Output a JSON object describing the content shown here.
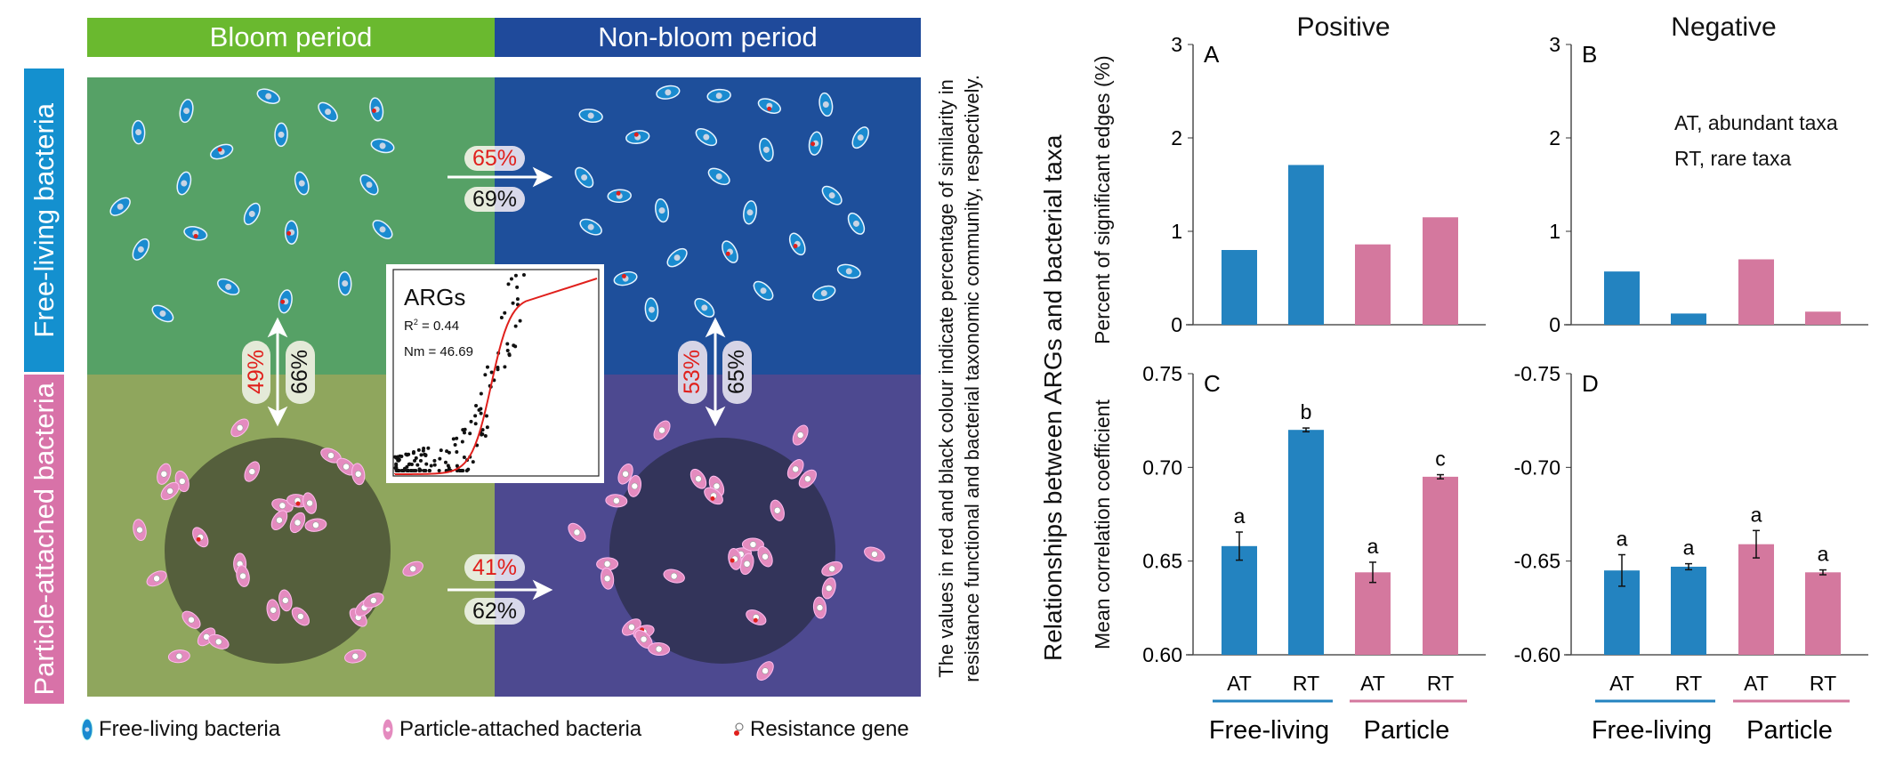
{
  "diagram": {
    "periods": {
      "bloom": "Bloom period",
      "non_bloom": "Non-bloom period"
    },
    "rows": {
      "free_living": "Free-living bacteria",
      "particle_attached": "Particle-attached bacteria"
    },
    "similarity": {
      "free_living_bloom_to_nonbloom": {
        "functional": "65%",
        "taxonomic": "69%"
      },
      "particle_bloom_to_nonbloom": {
        "functional": "41%",
        "taxonomic": "62%"
      },
      "bloom_free_vs_particle": {
        "functional": "49%",
        "taxonomic": "66%"
      },
      "nonbloom_free_vs_particle": {
        "functional": "53%",
        "taxonomic": "65%"
      }
    },
    "inset": {
      "title": "ARGs",
      "r2_label": "R",
      "r2_sup": "2",
      "r2_value": " = 0.44",
      "nm": "Nm = 46.69"
    },
    "legend": {
      "free_living": "Free-living bacteria",
      "particle_attached": "Particle-attached bacteria",
      "resistance_gene": "Resistance gene"
    },
    "caption_lines": [
      "The values in red and black colour indicate percentage of similarity in",
      "resistance functional and bacterial taxonomic community, respectively."
    ],
    "colors": {
      "bloom": "#6ab92f",
      "non_bloom": "#1f4a9b",
      "free_quad_bloom": "#56a166",
      "free_quad_nonbloom": "#1e4f9b",
      "particle_quad_bloom": "#8fa65d",
      "particle_quad_nonbloom": "#4d4990",
      "free_side": "#1490cf",
      "particle_side": "#d872a8",
      "functional_text": "#e0201c"
    }
  },
  "charts_header": {
    "main_ylabel": "Relationships between ARGs and bacterial taxa",
    "top_ylabel": "Percent of significant edges (%)",
    "bottom_ylabel": "Mean correlation coefficient",
    "col_titles": [
      "Positive",
      "Negative"
    ],
    "abbrev": [
      "AT, abundant taxa",
      "RT, rare taxa"
    ],
    "group_labels": [
      "Free-living",
      "Particle"
    ]
  },
  "chart_data": [
    {
      "panel": "A",
      "type": "bar",
      "title": "Positive",
      "ylabel": "Percent of significant edges (%)",
      "categories": [
        "AT",
        "RT",
        "AT",
        "RT"
      ],
      "groups": [
        "Free-living",
        "Free-living",
        "Particle",
        "Particle"
      ],
      "values": [
        0.8,
        1.71,
        0.86,
        1.15
      ],
      "ylim": [
        0,
        3
      ],
      "yticks": [
        "0",
        "1",
        "2",
        "3"
      ],
      "ytick_values": [
        0,
        1,
        2,
        3
      ],
      "colors": [
        "#2383c0",
        "#2383c0",
        "#d4789e",
        "#d4789e"
      ]
    },
    {
      "panel": "B",
      "type": "bar",
      "title": "Negative",
      "ylabel": "Percent of significant edges (%)",
      "categories": [
        "AT",
        "RT",
        "AT",
        "RT"
      ],
      "groups": [
        "Free-living",
        "Free-living",
        "Particle",
        "Particle"
      ],
      "values": [
        0.57,
        0.12,
        0.7,
        0.14
      ],
      "ylim": [
        0,
        3
      ],
      "yticks": [
        "0",
        "1",
        "2",
        "3"
      ],
      "ytick_values": [
        0,
        1,
        2,
        3
      ],
      "colors": [
        "#2383c0",
        "#2383c0",
        "#d4789e",
        "#d4789e"
      ]
    },
    {
      "panel": "C",
      "type": "bar",
      "ylabel": "Mean correlation coefficient",
      "categories": [
        "AT",
        "RT",
        "AT",
        "RT"
      ],
      "groups": [
        "Free-living",
        "Free-living",
        "Particle",
        "Particle"
      ],
      "values": [
        0.658,
        0.72,
        0.644,
        0.695
      ],
      "errors": [
        0.0075,
        0.001,
        0.0054,
        0.0011
      ],
      "letters": [
        "a",
        "b",
        "a",
        "c"
      ],
      "ylim": [
        0.6,
        0.75
      ],
      "yticks": [
        "0.60",
        "0.65",
        "0.70",
        "0.75"
      ],
      "ytick_values": [
        0.6,
        0.65,
        0.7,
        0.75
      ],
      "colors": [
        "#2383c0",
        "#2383c0",
        "#d4789e",
        "#d4789e"
      ]
    },
    {
      "panel": "D",
      "type": "bar",
      "ylabel": "Mean correlation coefficient",
      "categories": [
        "AT",
        "RT",
        "AT",
        "RT"
      ],
      "groups": [
        "Free-living",
        "Free-living",
        "Particle",
        "Particle"
      ],
      "values": [
        -0.645,
        -0.647,
        -0.659,
        -0.644
      ],
      "errors": [
        0.0084,
        0.0016,
        0.0073,
        0.0013
      ],
      "letters": [
        "a",
        "a",
        "a",
        "a"
      ],
      "ylim": [
        -0.6,
        -0.75
      ],
      "yticks": [
        "-0.60",
        "-0.65",
        "-0.70",
        "-0.75"
      ],
      "ytick_values": [
        -0.6,
        -0.65,
        -0.7,
        -0.75
      ],
      "colors": [
        "#2383c0",
        "#2383c0",
        "#d4789e",
        "#d4789e"
      ]
    }
  ]
}
